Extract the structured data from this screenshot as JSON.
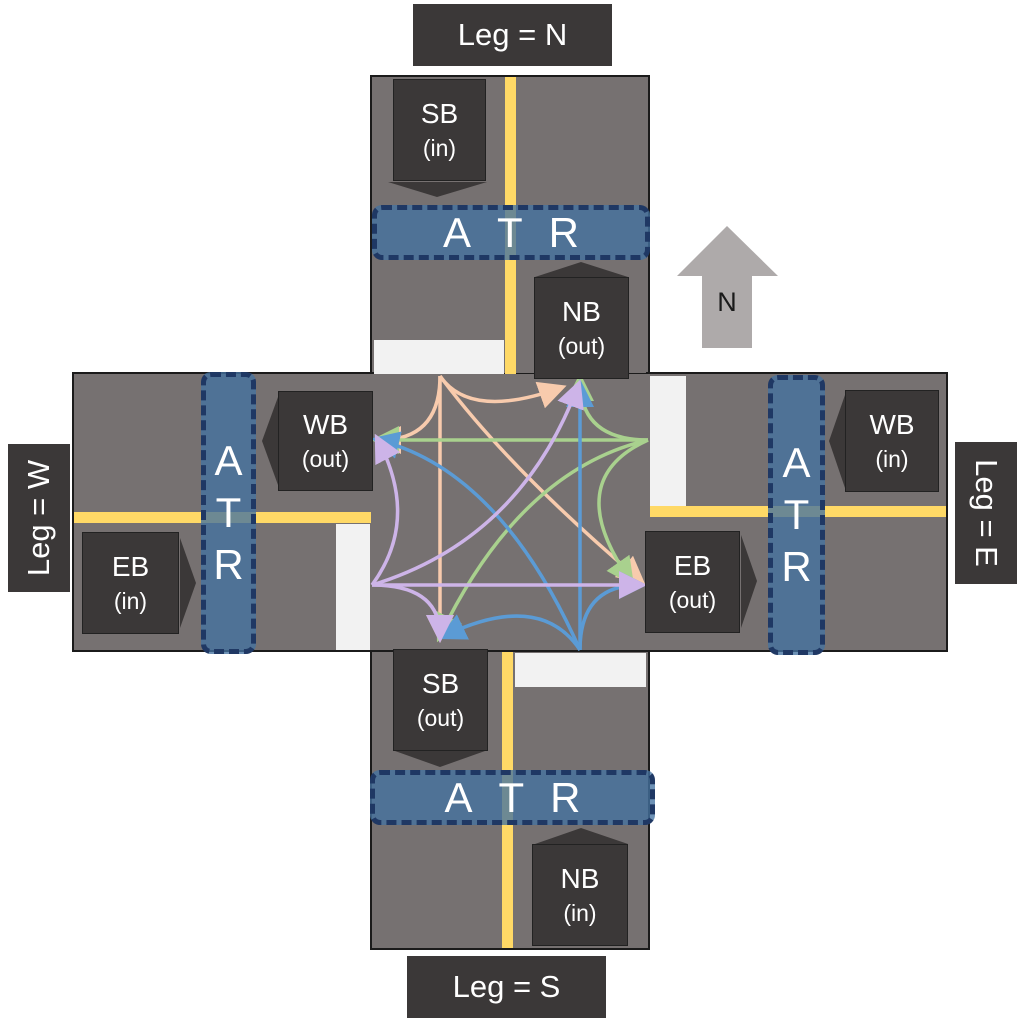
{
  "legs": {
    "north": "Leg = N",
    "south": "Leg = S",
    "west": "Leg = W",
    "east": "Leg = E"
  },
  "approaches": {
    "sb_in": {
      "main": "SB",
      "sub": "(in)"
    },
    "nb_out": {
      "main": "NB",
      "sub": "(out)"
    },
    "wb_out": {
      "main": "WB",
      "sub": "(out)"
    },
    "eb_in": {
      "main": "EB",
      "sub": "(in)"
    },
    "wb_in": {
      "main": "WB",
      "sub": "(in)"
    },
    "eb_out": {
      "main": "EB",
      "sub": "(out)"
    },
    "sb_out": {
      "main": "SB",
      "sub": "(out)"
    },
    "nb_in": {
      "main": "NB",
      "sub": "(in)"
    }
  },
  "atr_letters": [
    "A",
    "T",
    "R"
  ],
  "north_arrow_label": "N",
  "colors": {
    "road": "#767171",
    "label_box": "#3b3838",
    "center_line": "#ffd966",
    "stop_bar": "#f2f2f2",
    "atr_fill": "#4472a0",
    "atr_border": "#1f3864",
    "movement_from_north": "#f8cbad",
    "movement_from_east": "#a9d18e",
    "movement_from_south": "#5b9bd5",
    "movement_from_west": "#cdb4e8",
    "north_arrow": "#aeaaaa"
  }
}
